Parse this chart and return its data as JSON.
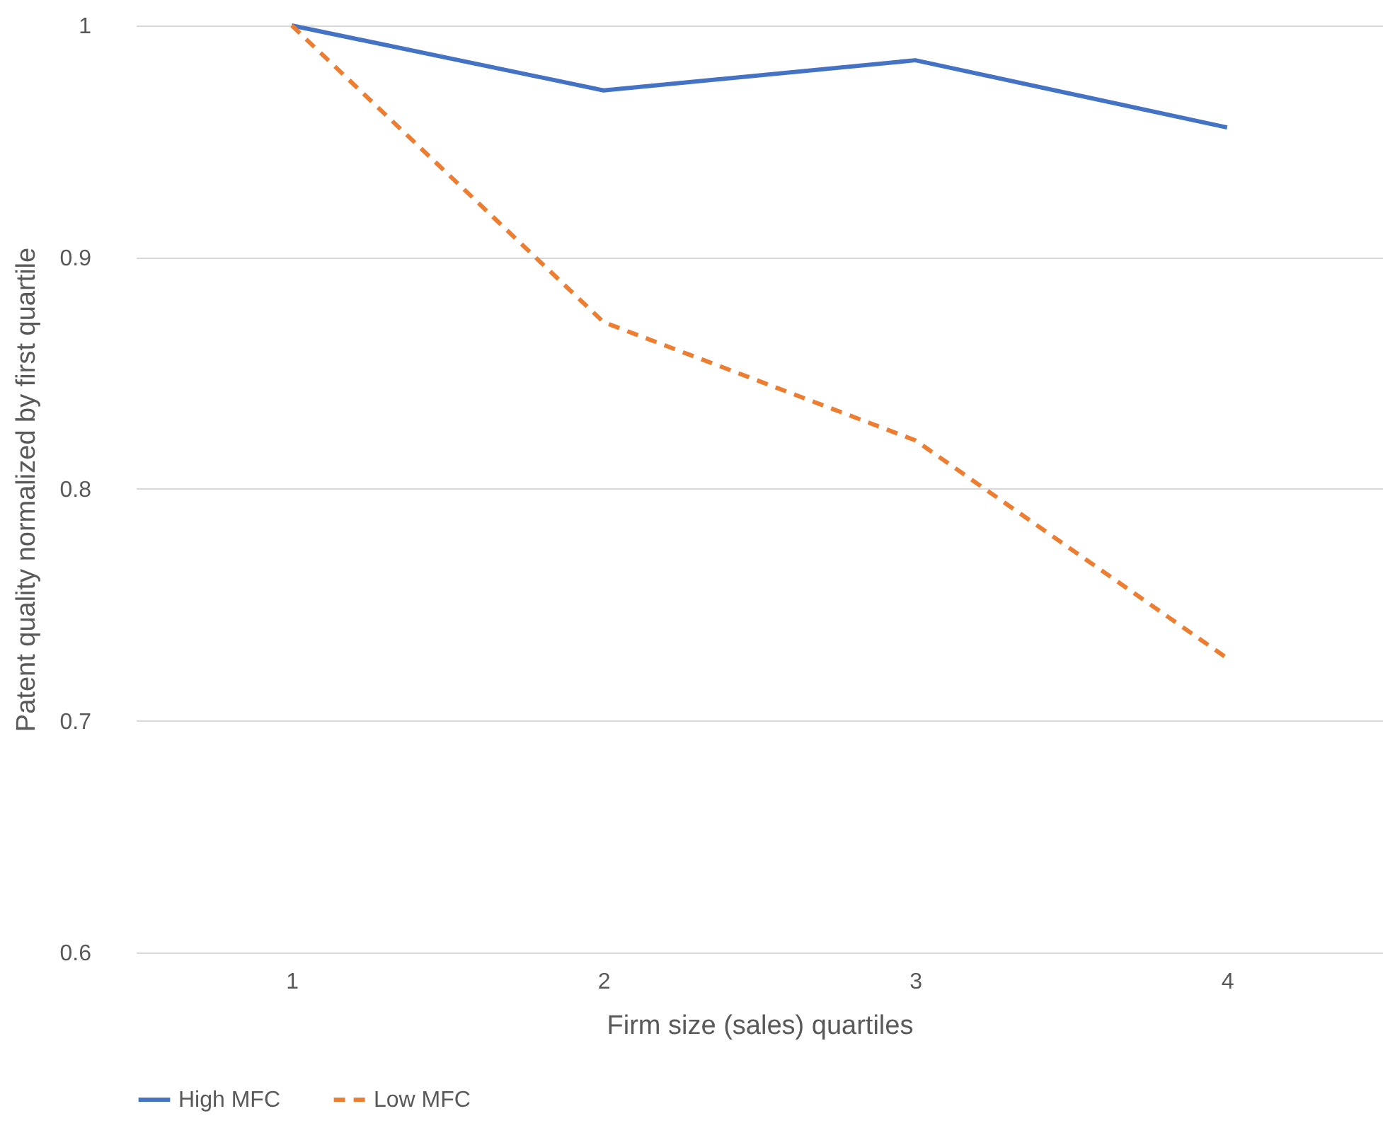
{
  "chart_data": {
    "type": "line",
    "xlabel": "Firm size (sales) quartiles",
    "ylabel": "Patent quality normalized by first quartile",
    "categories": [
      "1",
      "2",
      "3",
      "4"
    ],
    "series": [
      {
        "name": "High MFC",
        "color": "#4472c4",
        "line_style": "solid",
        "values": [
          1,
          0.972,
          0.985,
          0.956
        ]
      },
      {
        "name": "Low MFC",
        "color": "#ed7d31",
        "line_style": "dashed",
        "values": [
          1,
          0.872,
          0.821,
          0.727
        ]
      }
    ],
    "ylim": [
      0.6,
      1
    ],
    "yticks": [
      0.6,
      0.7,
      0.8,
      0.9,
      1
    ],
    "grid": "y",
    "legend": "bottom",
    "marker": "none"
  }
}
